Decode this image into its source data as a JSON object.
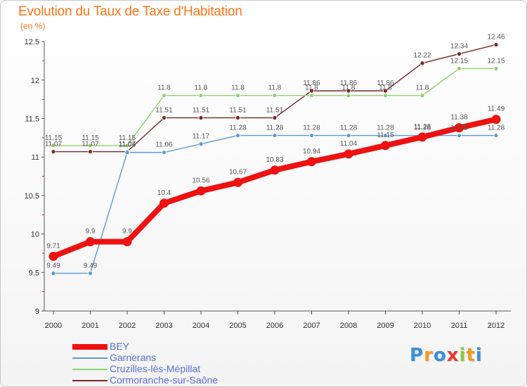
{
  "chart_data": {
    "type": "line",
    "title": "Evolution du Taux de Taxe d'Habitation",
    "unit_label": "(en %)",
    "x": [
      "2000",
      "2001",
      "2002",
      "2003",
      "2004",
      "2005",
      "2006",
      "2007",
      "2008",
      "2009",
      "2010",
      "2011",
      "2012"
    ],
    "ylim": [
      9,
      12.5
    ],
    "yticks": [
      "9",
      "9.5",
      "10",
      "10.5",
      "11",
      "11.5",
      "12",
      "12.5"
    ],
    "grid": false,
    "legend_position": "bottom-left",
    "series": [
      {
        "name": "BEY",
        "color": "#ee1111",
        "values": [
          9.71,
          9.9,
          9.9,
          10.4,
          10.56,
          10.67,
          10.83,
          10.94,
          11.04,
          11.15,
          11.26,
          11.38,
          11.49
        ]
      },
      {
        "name": "Garnerans",
        "color": "#5b9bd5",
        "values": [
          9.49,
          9.49,
          11.06,
          11.06,
          11.17,
          11.28,
          11.28,
          11.28,
          11.28,
          11.28,
          11.28,
          11.28,
          11.28
        ]
      },
      {
        "name": "Cruzilles-lès-Mépillat",
        "color": "#8fd46b",
        "values": [
          11.15,
          11.15,
          11.15,
          11.8,
          11.8,
          11.8,
          11.8,
          11.8,
          11.8,
          11.8,
          11.8,
          12.15,
          12.15
        ]
      },
      {
        "name": "Cormoranche-sur-Saône",
        "color": "#7a2626",
        "values": [
          11.07,
          11.07,
          11.07,
          11.51,
          11.51,
          11.51,
          11.51,
          11.86,
          11.86,
          11.86,
          12.22,
          12.34,
          12.46
        ]
      }
    ]
  },
  "logo": {
    "letters": [
      "P",
      "r",
      "o",
      "x",
      "i",
      "t",
      "i"
    ],
    "colors": [
      "#3a8fd9",
      "#f39a1f",
      "#3a8fd9",
      "#e63b2e",
      "#8cc63f",
      "#f39a1f",
      "#3a8fd9"
    ]
  }
}
